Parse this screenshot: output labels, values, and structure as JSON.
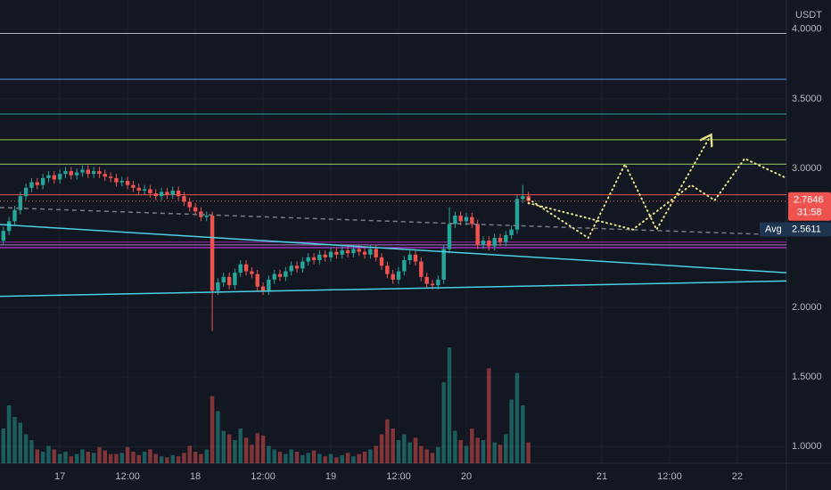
{
  "chart_data": {
    "type": "candlestick",
    "currency": "USDT",
    "up_color": "#26a69a",
    "down_color": "#ef5350",
    "xlim": [
      -10.6,
      128.7
    ],
    "ylim": [
      0.88,
      4.21
    ],
    "xticks": [
      {
        "value": 0,
        "label": "17"
      },
      {
        "value": 12,
        "label": "12:00"
      },
      {
        "value": 24,
        "label": "18"
      },
      {
        "value": 36,
        "label": "12:00"
      },
      {
        "value": 48,
        "label": "19"
      },
      {
        "value": 60,
        "label": "12:00"
      },
      {
        "value": 72,
        "label": "20"
      },
      {
        "value": 96,
        "label": "21"
      },
      {
        "value": 108,
        "label": "12:00"
      },
      {
        "value": 120,
        "label": "22"
      }
    ],
    "yticks": [
      {
        "value": 4,
        "label": "4.0000"
      },
      {
        "value": 3.5,
        "label": "3.5000"
      },
      {
        "value": 3,
        "label": "3.0000"
      },
      {
        "value": 2,
        "label": "2.0000"
      },
      {
        "value": 1.5,
        "label": "1.5000"
      },
      {
        "value": 1,
        "label": "1.0000"
      }
    ],
    "grid": true,
    "x": [
      -10,
      -9,
      -8,
      -7,
      -6,
      -5,
      -4,
      -3,
      -2,
      -1,
      0,
      1,
      2,
      3,
      4,
      5,
      6,
      7,
      8,
      9,
      10,
      11,
      12,
      13,
      14,
      15,
      16,
      17,
      18,
      19,
      20,
      21,
      22,
      23,
      24,
      25,
      26,
      27,
      28,
      29,
      30,
      31,
      32,
      33,
      34,
      35,
      36,
      37,
      38,
      39,
      40,
      41,
      42,
      43,
      44,
      45,
      46,
      47,
      48,
      49,
      50,
      51,
      52,
      53,
      54,
      55,
      56,
      57,
      58,
      59,
      60,
      61,
      62,
      63,
      64,
      65,
      66,
      67,
      68,
      69,
      70,
      71,
      72,
      73,
      74,
      75,
      76,
      77,
      78,
      79,
      80,
      81,
      82,
      83
    ],
    "open": [
      2.48,
      2.55,
      2.62,
      2.7,
      2.8,
      2.86,
      2.9,
      2.88,
      2.93,
      2.95,
      2.92,
      2.96,
      2.98,
      2.95,
      2.97,
      2.99,
      2.96,
      2.98,
      2.96,
      2.94,
      2.93,
      2.9,
      2.91,
      2.88,
      2.86,
      2.84,
      2.85,
      2.82,
      2.8,
      2.83,
      2.81,
      2.84,
      2.8,
      2.76,
      2.72,
      2.69,
      2.65,
      2.66,
      2.12,
      2.18,
      2.22,
      2.16,
      2.25,
      2.31,
      2.26,
      2.24,
      2.15,
      2.12,
      2.2,
      2.24,
      2.22,
      2.26,
      2.3,
      2.28,
      2.33,
      2.36,
      2.34,
      2.38,
      2.36,
      2.4,
      2.38,
      2.41,
      2.39,
      2.42,
      2.4,
      2.38,
      2.42,
      2.36,
      2.3,
      2.24,
      2.2,
      2.26,
      2.34,
      2.38,
      2.33,
      2.22,
      2.17,
      2.16,
      2.2,
      2.42,
      2.6,
      2.66,
      2.62,
      2.65,
      2.6,
      2.45,
      2.48,
      2.44,
      2.5,
      2.47,
      2.52,
      2.56,
      2.78,
      2.8
    ],
    "high": [
      2.58,
      2.65,
      2.73,
      2.83,
      2.89,
      2.93,
      2.93,
      2.96,
      2.98,
      2.98,
      2.99,
      3.01,
      3.01,
      3.0,
      3.02,
      3.02,
      3.01,
      3.01,
      2.99,
      2.97,
      2.96,
      2.94,
      2.94,
      2.91,
      2.89,
      2.88,
      2.88,
      2.85,
      2.86,
      2.86,
      2.87,
      2.87,
      2.83,
      2.79,
      2.75,
      2.72,
      2.69,
      2.69,
      2.21,
      2.25,
      2.25,
      2.28,
      2.34,
      2.34,
      2.29,
      2.27,
      2.18,
      2.23,
      2.27,
      2.27,
      2.29,
      2.33,
      2.33,
      2.36,
      2.39,
      2.39,
      2.41,
      2.41,
      2.43,
      2.43,
      2.44,
      2.44,
      2.45,
      2.45,
      2.43,
      2.45,
      2.45,
      2.39,
      2.33,
      2.27,
      2.29,
      2.37,
      2.41,
      2.41,
      2.36,
      2.25,
      2.2,
      2.23,
      2.45,
      2.72,
      2.69,
      2.69,
      2.68,
      2.68,
      2.63,
      2.51,
      2.51,
      2.53,
      2.53,
      2.55,
      2.59,
      2.81,
      2.88,
      2.83
    ],
    "low": [
      2.45,
      2.52,
      2.59,
      2.67,
      2.77,
      2.83,
      2.85,
      2.85,
      2.9,
      2.89,
      2.89,
      2.93,
      2.92,
      2.92,
      2.94,
      2.93,
      2.93,
      2.93,
      2.91,
      2.9,
      2.87,
      2.87,
      2.85,
      2.83,
      2.81,
      2.81,
      2.79,
      2.77,
      2.77,
      2.78,
      2.78,
      2.77,
      2.73,
      2.69,
      2.66,
      2.62,
      2.62,
      1.83,
      2.09,
      2.15,
      2.13,
      2.13,
      2.22,
      2.23,
      2.21,
      2.12,
      2.09,
      2.09,
      2.17,
      2.19,
      2.19,
      2.23,
      2.25,
      2.25,
      2.3,
      2.31,
      2.31,
      2.33,
      2.33,
      2.35,
      2.35,
      2.36,
      2.36,
      2.37,
      2.35,
      2.35,
      2.33,
      2.27,
      2.21,
      2.17,
      2.17,
      2.23,
      2.31,
      2.3,
      2.19,
      2.14,
      2.13,
      2.13,
      2.17,
      2.39,
      2.57,
      2.59,
      2.59,
      2.57,
      2.42,
      2.42,
      2.41,
      2.41,
      2.44,
      2.44,
      2.49,
      2.53,
      2.75,
      2.74
    ],
    "close": [
      2.55,
      2.62,
      2.7,
      2.8,
      2.86,
      2.9,
      2.88,
      2.93,
      2.95,
      2.92,
      2.96,
      2.98,
      2.95,
      2.97,
      2.99,
      2.96,
      2.98,
      2.96,
      2.94,
      2.93,
      2.9,
      2.91,
      2.88,
      2.86,
      2.84,
      2.85,
      2.82,
      2.8,
      2.83,
      2.81,
      2.84,
      2.8,
      2.76,
      2.72,
      2.69,
      2.65,
      2.66,
      2.12,
      2.18,
      2.22,
      2.16,
      2.25,
      2.31,
      2.26,
      2.24,
      2.15,
      2.12,
      2.2,
      2.24,
      2.22,
      2.26,
      2.3,
      2.28,
      2.33,
      2.36,
      2.34,
      2.38,
      2.36,
      2.4,
      2.38,
      2.41,
      2.39,
      2.42,
      2.4,
      2.38,
      2.42,
      2.36,
      2.3,
      2.24,
      2.2,
      2.26,
      2.34,
      2.38,
      2.33,
      2.22,
      2.17,
      2.16,
      2.2,
      2.42,
      2.6,
      2.66,
      2.62,
      2.65,
      2.6,
      2.45,
      2.48,
      2.44,
      2.5,
      2.47,
      2.52,
      2.56,
      2.78,
      2.8,
      2.7646
    ],
    "volume_lim": [
      0,
      100
    ],
    "volume": [
      30,
      50,
      40,
      35,
      25,
      20,
      12,
      10,
      15,
      12,
      8,
      10,
      6,
      8,
      12,
      10,
      9,
      14,
      11,
      8,
      8,
      9,
      14,
      10,
      7,
      10,
      12,
      8,
      6,
      5,
      7,
      6,
      9,
      15,
      10,
      8,
      12,
      58,
      45,
      28,
      25,
      20,
      30,
      22,
      16,
      26,
      24,
      15,
      12,
      10,
      8,
      12,
      10,
      7,
      9,
      11,
      8,
      6,
      8,
      5,
      7,
      9,
      6,
      8,
      10,
      12,
      15,
      25,
      38,
      30,
      20,
      25,
      18,
      22,
      15,
      12,
      9,
      14,
      70,
      100,
      28,
      20,
      15,
      30,
      22,
      20,
      82,
      18,
      16,
      25,
      55,
      78,
      50,
      18
    ],
    "levels": [
      {
        "value": 3.97,
        "color": "#b2b5be"
      },
      {
        "value": 3.64,
        "color": "#5b9cf6"
      },
      {
        "value": 3.39,
        "color": "#26a69a"
      },
      {
        "value": 3.205,
        "color": "#8bc34a"
      },
      {
        "value": 3.03,
        "color": "#9ccc65"
      },
      {
        "value": 2.81,
        "color": "#f05350"
      },
      {
        "value": 2.47,
        "color": "#9c27b0"
      },
      {
        "value": 2.45,
        "color": "#ba68c8"
      },
      {
        "value": 2.43,
        "color": "#e040fb"
      }
    ],
    "trendlines": [
      {
        "x": [
          -10.6,
          128.7
        ],
        "y": [
          2.596,
          2.25
        ],
        "color": "#4dd0e1",
        "style": "solid"
      },
      {
        "x": [
          -10.6,
          128.7
        ],
        "y": [
          2.08,
          2.19
        ],
        "color": "#4dd0e1",
        "style": "solid"
      },
      {
        "x": [
          -10.6,
          128.7
        ],
        "y": [
          2.718,
          2.52
        ],
        "color": "#787b86",
        "style": "dashed"
      },
      {
        "x": [
          83,
          93.6,
          100.1,
          105.7,
          115.2
        ],
        "y": [
          2.78,
          2.5,
          3.03,
          2.56,
          3.23
        ],
        "color": "#e8e38a",
        "style": "dotted",
        "arrow": true
      },
      {
        "x": [
          83,
          101.5,
          111.8,
          116,
          121.3,
          128.7
        ],
        "y": [
          2.75,
          2.56,
          2.88,
          2.77,
          3.07,
          2.93
        ],
        "color": "#e8e38a",
        "style": "dotted"
      }
    ],
    "last_price": 2.7646,
    "countdown": "31:58",
    "avg_label": "Avg",
    "avg_price": 2.5611
  }
}
